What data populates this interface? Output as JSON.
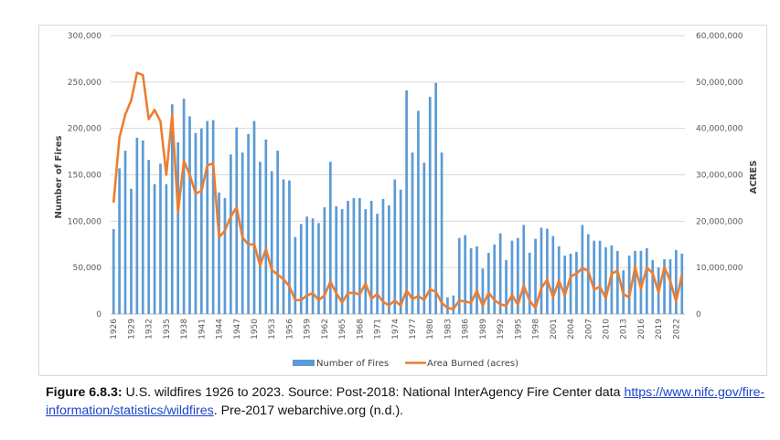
{
  "chart_data": {
    "type": "bar+line",
    "title": "",
    "xlabel": "",
    "ylabel_left": "Number of Fires",
    "ylabel_right": "ACRES",
    "ylim_left": [
      0,
      300000
    ],
    "ylim_right": [
      0,
      60000000
    ],
    "yticks_left": [
      "0",
      "50,000",
      "100,000",
      "150,000",
      "200,000",
      "250,000",
      "300,000"
    ],
    "yticks_right": [
      "0",
      "10,000,000",
      "20,000,000",
      "30,000,000",
      "40,000,000",
      "50,000,000",
      "60,000,000"
    ],
    "xtick_step": 3,
    "grid": "horizontal",
    "legend_position": "bottom",
    "colors": {
      "bars": "#5b9bd5",
      "line": "#ed7d31",
      "grid": "#d9d9d9"
    },
    "years": [
      1926,
      1927,
      1928,
      1929,
      1930,
      1931,
      1932,
      1933,
      1934,
      1935,
      1936,
      1937,
      1938,
      1939,
      1940,
      1941,
      1942,
      1943,
      1944,
      1945,
      1946,
      1947,
      1948,
      1949,
      1950,
      1951,
      1952,
      1953,
      1954,
      1955,
      1956,
      1957,
      1958,
      1959,
      1960,
      1961,
      1962,
      1963,
      1964,
      1965,
      1966,
      1967,
      1968,
      1969,
      1970,
      1971,
      1972,
      1973,
      1974,
      1975,
      1976,
      1977,
      1978,
      1979,
      1980,
      1981,
      1982,
      1983,
      1984,
      1985,
      1986,
      1987,
      1988,
      1989,
      1990,
      1991,
      1992,
      1993,
      1994,
      1995,
      1996,
      1997,
      1998,
      1999,
      2000,
      2001,
      2002,
      2003,
      2004,
      2005,
      2006,
      2007,
      2008,
      2009,
      2010,
      2011,
      2012,
      2013,
      2014,
      2015,
      2016,
      2017,
      2018,
      2019,
      2020,
      2021,
      2022,
      2023
    ],
    "series": [
      {
        "name": "Number of Fires",
        "type": "bar",
        "axis": "left",
        "values": [
          91500,
          157000,
          176000,
          135000,
          190000,
          187000,
          166000,
          140000,
          162000,
          140000,
          226000,
          185000,
          232000,
          213000,
          195000,
          200000,
          208000,
          209000,
          131000,
          125000,
          172000,
          201000,
          174000,
          194000,
          208000,
          164000,
          188000,
          154000,
          176000,
          145000,
          144000,
          83000,
          97000,
          105000,
          103000,
          98000,
          115000,
          164000,
          116000,
          113000,
          122000,
          125000,
          125000,
          113000,
          122000,
          108000,
          124000,
          117000,
          145000,
          134000,
          241000,
          174000,
          219000,
          163000,
          234000,
          249000,
          174000,
          18000,
          20000,
          82000,
          85000,
          71000,
          73000,
          49000,
          66000,
          75000,
          87000,
          58000,
          79000,
          82000,
          96000,
          66000,
          81000,
          93000,
          92000,
          84000,
          73000,
          63000,
          65000,
          67000,
          96000,
          86000,
          79000,
          79000,
          72000,
          74000,
          68000,
          47000,
          63000,
          68000,
          68000,
          71000,
          58000,
          50000,
          59000,
          59000,
          69000,
          65000
        ]
      },
      {
        "name": "Area Burned (acres)",
        "type": "line",
        "axis": "right",
        "values": [
          24000000,
          38000000,
          43000000,
          46000000,
          52000000,
          51500000,
          42000000,
          44000000,
          41500000,
          30000000,
          43000000,
          22000000,
          33000000,
          30000000,
          26000000,
          26500000,
          32000000,
          32500000,
          16500000,
          18000000,
          21000000,
          23000000,
          16500000,
          15000000,
          15000000,
          10500000,
          14000000,
          9500000,
          8500000,
          7500000,
          6000000,
          3000000,
          3000000,
          4000000,
          4500000,
          3000000,
          4000000,
          7000000,
          4500000,
          2500000,
          4500000,
          4600000,
          4200000,
          6600000,
          3300000,
          4300000,
          2600000,
          1900000,
          2900000,
          1800000,
          5100000,
          3200000,
          3900000,
          3000000,
          5300000,
          4800000,
          2400000,
          1300000,
          1100000,
          2900000,
          2700000,
          2400000,
          5000000,
          1800000,
          4600000,
          3000000,
          2100000,
          1800000,
          4100000,
          2000000,
          6100000,
          2900000,
          1300000,
          5600000,
          7400000,
          3600000,
          7200000,
          4000000,
          8100000,
          8700000,
          9900000,
          9300000,
          5300000,
          5900000,
          3400000,
          8700000,
          9300000,
          4300000,
          3600000,
          10100000,
          5500000,
          10000000,
          8800000,
          4700000,
          10100000,
          7100000,
          2700000,
          8500000
        ]
      }
    ]
  },
  "legend": {
    "bars_label": "Number of Fires",
    "line_label": "Area Burned (acres)"
  },
  "caption": {
    "label": "Figure 6.8.3:",
    "text1": " U.S. wildfires 1926 to 2023. Source: Post-2018: National InterAgency Fire Center data ",
    "link": "https://www.nifc.gov/fire-information/statistics/wildfires",
    "text2": ". Pre-2017 webarchive.org (n.d.)."
  }
}
